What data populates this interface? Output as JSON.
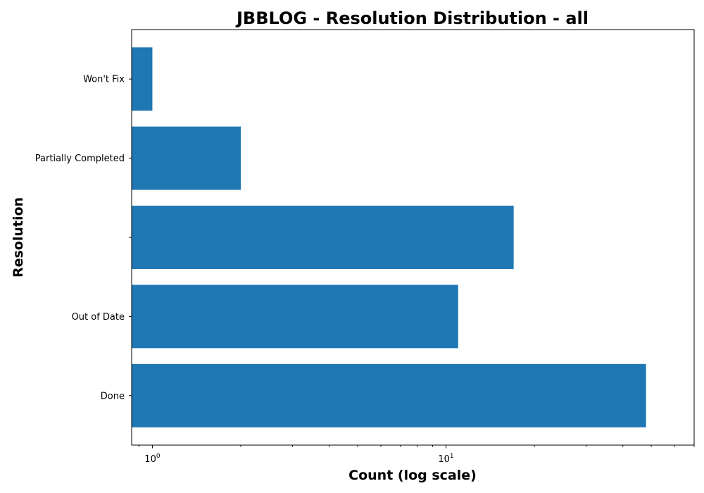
{
  "chart_data": {
    "type": "bar",
    "orientation": "horizontal",
    "title": "JBBLOG - Resolution Distribution - all",
    "xlabel": "Count (log scale)",
    "ylabel": "Resolution",
    "xscale": "log",
    "xlim": [
      0.85,
      70
    ],
    "categories": [
      "Done",
      "Out of Date",
      "",
      "Partially Completed",
      "Won't Fix"
    ],
    "values": [
      48,
      11,
      17,
      2,
      1
    ],
    "x_ticks": [
      {
        "value": 1,
        "base": "10",
        "exp": "0"
      },
      {
        "value": 10,
        "base": "10",
        "exp": "1"
      }
    ],
    "bar_color": "#1f77b4",
    "grid": false,
    "legend": "none"
  }
}
